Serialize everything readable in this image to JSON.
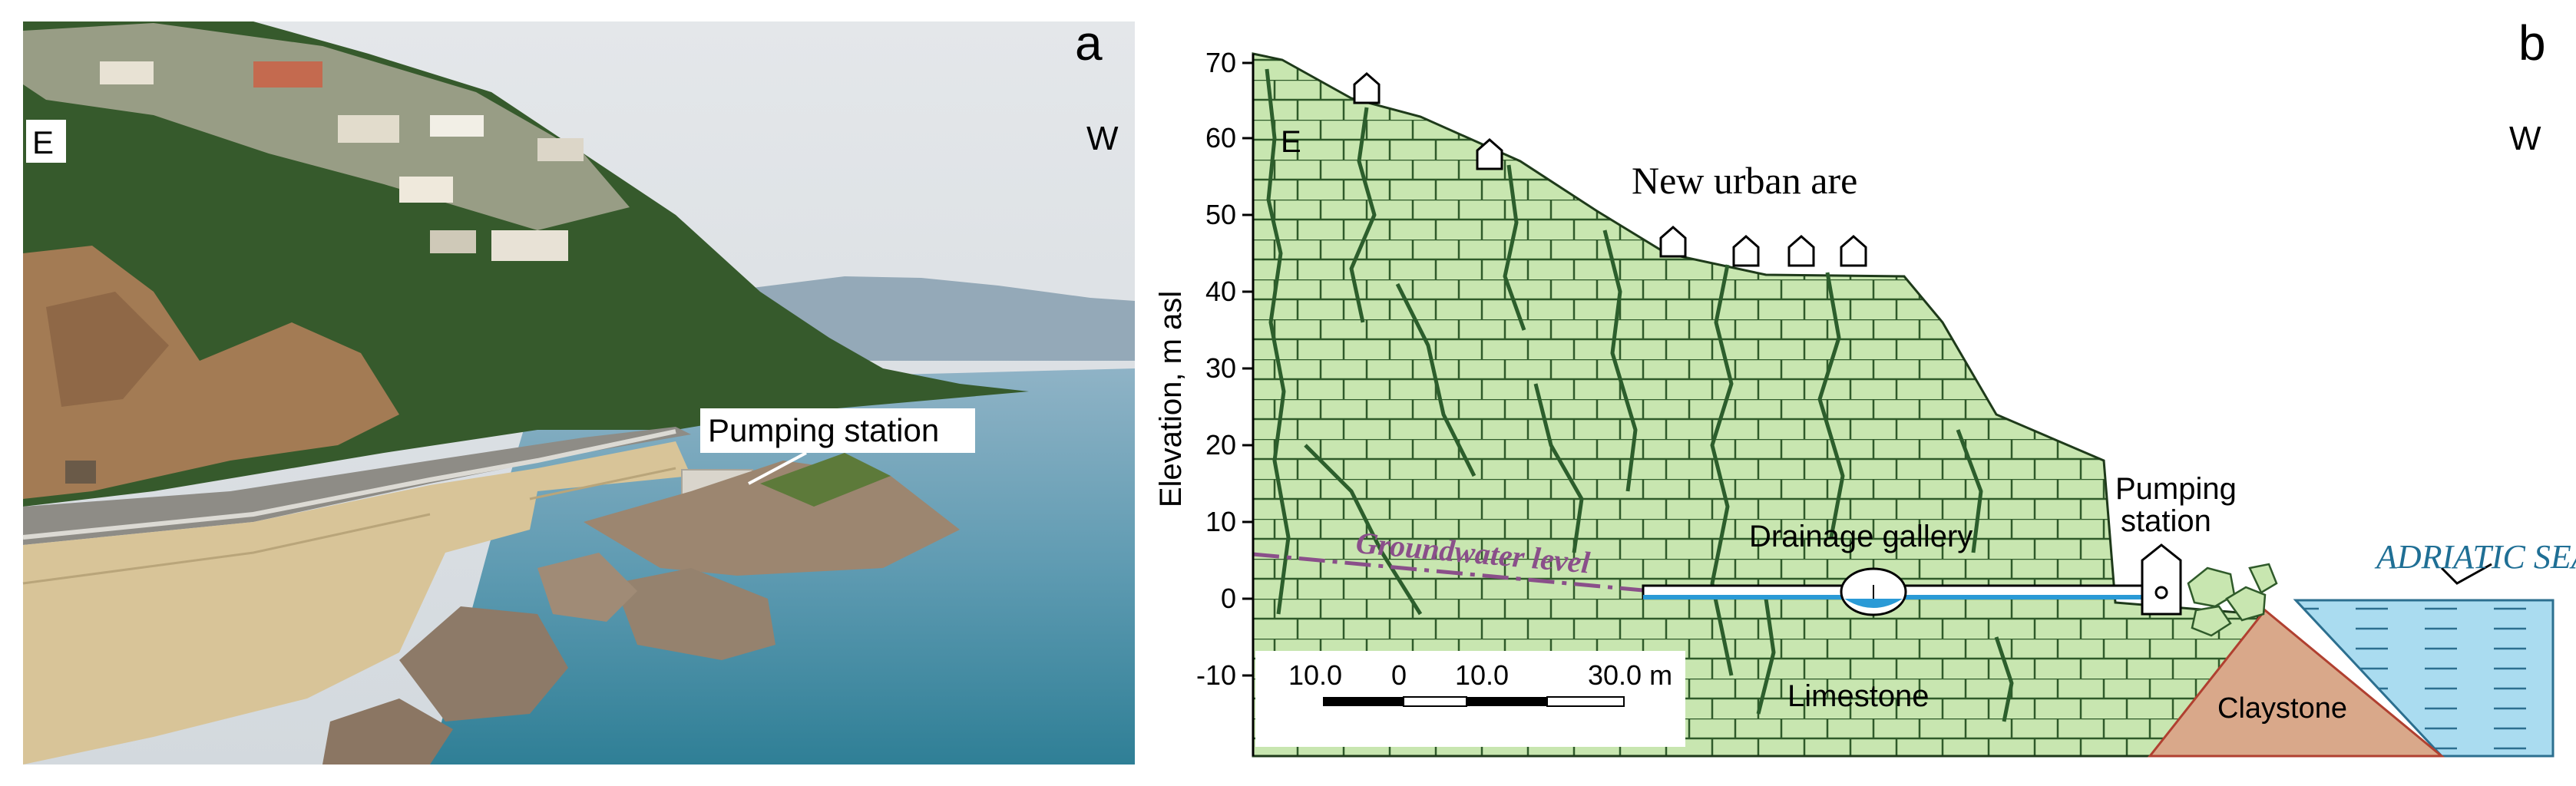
{
  "panel_a": {
    "letter": "a",
    "east_label": "E",
    "west_label": "W",
    "callout": "Pumping station"
  },
  "panel_b": {
    "letter": "b",
    "east_label": "E",
    "west_label": "W",
    "y_axis_title": "Elevation, m asl",
    "y_ticks": [
      "70",
      "60",
      "50",
      "40",
      "30",
      "20",
      "10",
      "0",
      "-10"
    ],
    "urban_label": "New urban are",
    "groundwater_label": "Groundwater level",
    "drainage_label": "Drainage gallery",
    "pumping_label_line1": "Pumping",
    "pumping_label_line2": "station",
    "limestone_label": "Limestone",
    "claystone_label": "Claystone",
    "sea_label": "ADRIATIC SEA",
    "scale": {
      "labels": [
        "10.0",
        "0",
        "10.0",
        "30.0 m"
      ]
    }
  },
  "colors": {
    "limestone": "#c8e6b0",
    "brick_lines": "#2f5a2a",
    "karst": "#2c5e2c",
    "claystone": "#d9a88a",
    "sea": "#aadcf0",
    "sea_text": "#1f6f95",
    "groundwater": "#8a4f8a",
    "gallery_water": "#2a9ad6"
  }
}
